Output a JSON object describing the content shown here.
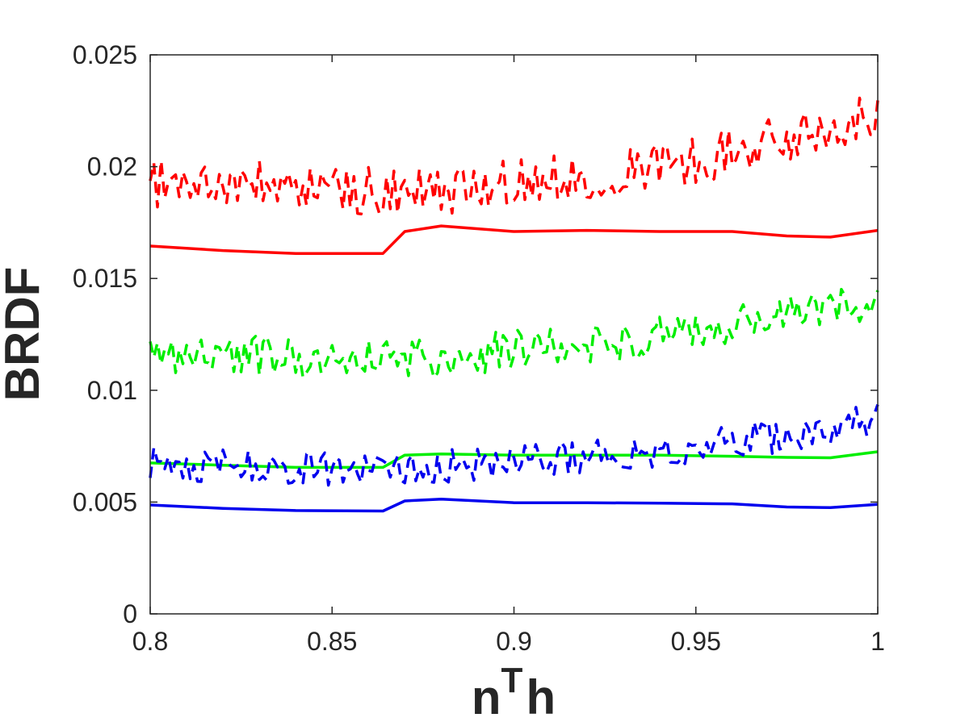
{
  "chart_data": {
    "type": "line",
    "title": "",
    "xlabel_base": "n",
    "xlabel_sup": "T",
    "xlabel_tail": "h",
    "ylabel": "BRDF",
    "xlim": [
      0.8,
      1.0
    ],
    "ylim": [
      0,
      0.025
    ],
    "xticks": [
      0.8,
      0.85,
      0.9,
      0.95,
      1.0
    ],
    "xtick_labels": [
      "0.8",
      "0.85",
      "0.9",
      "0.95",
      "1"
    ],
    "yticks": [
      0,
      0.005,
      0.01,
      0.015,
      0.02,
      0.025
    ],
    "ytick_labels": [
      "0",
      "0.005",
      "0.01",
      "0.015",
      "0.02",
      "0.025"
    ],
    "grid": false,
    "legend": "none",
    "series": [
      {
        "style": "solid",
        "color": "#ff0000",
        "x": [
          0.8,
          0.82,
          0.84,
          0.864,
          0.87,
          0.88,
          0.9,
          0.92,
          0.94,
          0.96,
          0.975,
          0.987,
          1.0
        ],
        "y": [
          0.01645,
          0.01625,
          0.01612,
          0.01612,
          0.0171,
          0.01735,
          0.0171,
          0.01715,
          0.0171,
          0.0171,
          0.0169,
          0.01685,
          0.01715
        ]
      },
      {
        "style": "solid",
        "color": "#00ee00",
        "x": [
          0.8,
          0.82,
          0.84,
          0.864,
          0.87,
          0.88,
          0.9,
          0.92,
          0.94,
          0.96,
          0.975,
          0.987,
          1.0
        ],
        "y": [
          0.00675,
          0.00665,
          0.00655,
          0.00655,
          0.0071,
          0.00715,
          0.0071,
          0.0071,
          0.0071,
          0.00705,
          0.007,
          0.00698,
          0.00725
        ]
      },
      {
        "style": "solid",
        "color": "#0000ee",
        "x": [
          0.8,
          0.82,
          0.84,
          0.864,
          0.87,
          0.88,
          0.9,
          0.92,
          0.94,
          0.96,
          0.975,
          0.987,
          1.0
        ],
        "y": [
          0.00487,
          0.00472,
          0.00462,
          0.0046,
          0.00505,
          0.00513,
          0.00497,
          0.00497,
          0.00495,
          0.00492,
          0.00478,
          0.00475,
          0.0049
        ]
      },
      {
        "style": "dashed",
        "color": "#ff0000",
        "x": [
          0.8,
          0.825,
          0.85,
          0.875,
          0.9,
          0.925,
          0.95,
          0.975,
          1.0
        ],
        "y": [
          0.0193,
          0.0192,
          0.019,
          0.0188,
          0.0193,
          0.0197,
          0.0203,
          0.0212,
          0.0225
        ],
        "noise_amplitude": 0.0011
      },
      {
        "style": "dashed",
        "color": "#00ee00",
        "x": [
          0.8,
          0.825,
          0.85,
          0.875,
          0.9,
          0.925,
          0.95,
          0.975,
          1.0
        ],
        "y": [
          0.0116,
          0.0116,
          0.0114,
          0.0114,
          0.0118,
          0.0121,
          0.0126,
          0.0133,
          0.0141
        ],
        "noise_amplitude": 0.0009
      },
      {
        "style": "dashed",
        "color": "#0000ee",
        "x": [
          0.8,
          0.825,
          0.85,
          0.875,
          0.9,
          0.925,
          0.95,
          0.975,
          1.0
        ],
        "y": [
          0.0067,
          0.0066,
          0.0065,
          0.0066,
          0.0068,
          0.0071,
          0.0075,
          0.008,
          0.0088
        ],
        "noise_amplitude": 0.0008
      }
    ]
  }
}
